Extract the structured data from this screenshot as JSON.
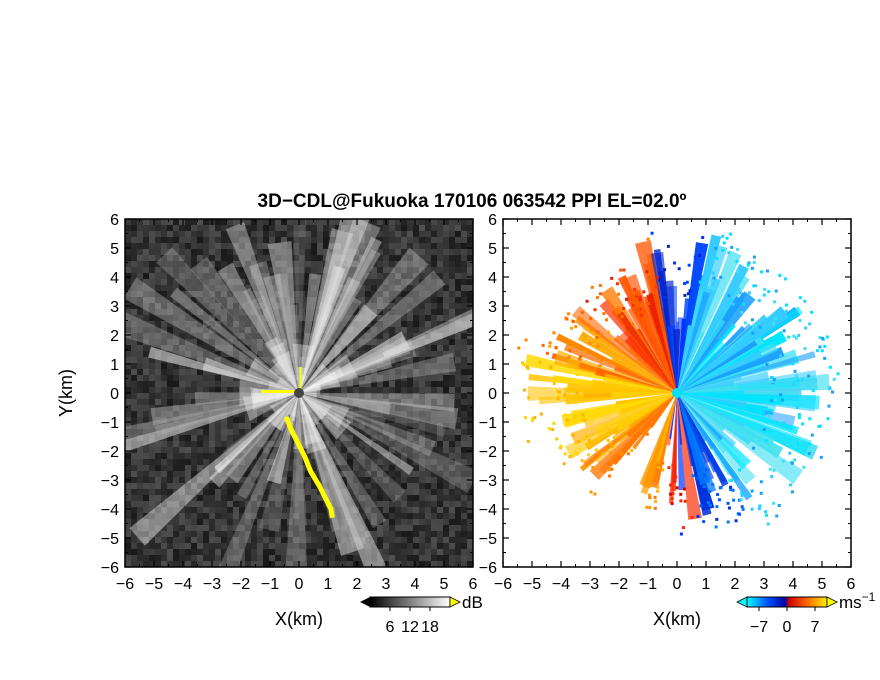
{
  "chart_data": {
    "type": "heatmap",
    "title": "3D−CDL@Fukuoka 170106 063542 PPI EL=02.0º",
    "panels": [
      {
        "name": "backscatter",
        "xlabel": "X(km)",
        "ylabel": "Y(km)",
        "xlim": [
          -6,
          6
        ],
        "ylim": [
          -6,
          6
        ],
        "xticks": [
          "−6",
          "−5",
          "−4",
          "−3",
          "−2",
          "−1",
          "0",
          "1",
          "2",
          "3",
          "4",
          "5",
          "6"
        ],
        "yticks": [
          "−6",
          "−5",
          "−4",
          "−3",
          "−2",
          "−1",
          "0",
          "1",
          "2",
          "3",
          "4",
          "5",
          "6"
        ],
        "colorbar": {
          "ticks": [
            "6",
            "12",
            "18"
          ],
          "unit": "dB",
          "range": [
            0,
            24
          ]
        }
      },
      {
        "name": "doppler-velocity",
        "xlabel": "X(km)",
        "xlim": [
          -6,
          6
        ],
        "ylim": [
          -6,
          6
        ],
        "xticks": [
          "−6",
          "−5",
          "−4",
          "−3",
          "−2",
          "−1",
          "0",
          "1",
          "2",
          "3",
          "4",
          "5",
          "6"
        ],
        "yticks": [
          "−6",
          "−5",
          "−4",
          "−3",
          "−2",
          "−1",
          "0",
          "1",
          "2",
          "3",
          "4",
          "5",
          "6"
        ],
        "colorbar": {
          "ticks": [
            "−7",
            "0",
            "7"
          ],
          "unit": "ms",
          "unit_sup": "−1",
          "range": [
            -10,
            10
          ]
        }
      }
    ]
  },
  "colors": {
    "background_left": "#141414",
    "highlight": "#ffff00",
    "velocity_negative": [
      "#00ffff",
      "#0044ff",
      "#0000cc"
    ],
    "velocity_positive": [
      "#ff2200",
      "#ff9900",
      "#ffd000"
    ]
  }
}
